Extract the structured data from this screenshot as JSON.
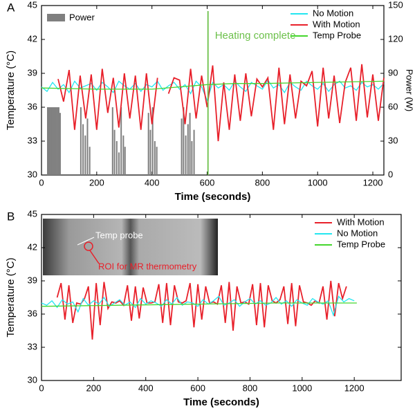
{
  "chart_data": [
    {
      "type": "line",
      "panel_label": "A",
      "xlabel": "Time (seconds)",
      "ylabel": "Temperature (°C)",
      "y2label": "Power (W)",
      "xlim": [
        0,
        1240
      ],
      "xticks": [
        0,
        200,
        400,
        600,
        800,
        1000,
        1200
      ],
      "ylim": [
        30,
        45
      ],
      "yticks": [
        30,
        33,
        36,
        39,
        42,
        45
      ],
      "y2lim": [
        0,
        150
      ],
      "y2ticks": [
        0,
        30,
        60,
        90,
        120,
        150
      ],
      "annotations": [
        {
          "text": "Heating complete",
          "x": 603,
          "color": "#6cc04a"
        }
      ],
      "series": [
        {
          "name": "Power",
          "type": "bar",
          "axis": "y2",
          "color": "#7f7f7f",
          "x": [
            20,
            25,
            30,
            35,
            40,
            45,
            50,
            55,
            60,
            65,
            140,
            148,
            156,
            164,
            172,
            255,
            262,
            270,
            278,
            286,
            294,
            300,
            385,
            392,
            400,
            408,
            415,
            505,
            512,
            520,
            528,
            535,
            542,
            550
          ],
          "values": [
            60,
            60,
            60,
            60,
            60,
            60,
            60,
            60,
            60,
            55,
            60,
            45,
            35,
            50,
            25,
            60,
            40,
            30,
            20,
            60,
            35,
            25,
            55,
            40,
            60,
            30,
            25,
            50,
            60,
            35,
            45,
            55,
            30,
            40
          ]
        },
        {
          "name": "No Motion",
          "color": "#22e6f0",
          "x": [
            0,
            20,
            40,
            60,
            80,
            100,
            120,
            140,
            160,
            180,
            200,
            220,
            240,
            260,
            280,
            300,
            320,
            340,
            360,
            380,
            400,
            420,
            440,
            460,
            480,
            500,
            520,
            540,
            560,
            580,
            600,
            620,
            640,
            660,
            680,
            700,
            720,
            740,
            760,
            780,
            800,
            820,
            840,
            860,
            880,
            900,
            920,
            940,
            960,
            980,
            1000,
            1020,
            1040,
            1060,
            1080,
            1100,
            1120,
            1140,
            1160,
            1180,
            1200,
            1220,
            1240
          ],
          "values": [
            37.8,
            37.4,
            38.2,
            37.6,
            38.0,
            37.3,
            38.3,
            37.7,
            37.9,
            38.1,
            37.5,
            38.2,
            37.8,
            37.3,
            38.3,
            37.9,
            37.6,
            38.1,
            37.4,
            38.0,
            37.8,
            38.3,
            37.5,
            37.9,
            38.2,
            37.6,
            38.0,
            37.2,
            38.3,
            37.8,
            36.6,
            38.2,
            37.7,
            38.0,
            37.5,
            38.3,
            37.8,
            37.4,
            38.2,
            37.9,
            37.6,
            38.4,
            37.7,
            38.0,
            37.3,
            38.2,
            37.8,
            37.5,
            38.3,
            37.9,
            37.6,
            38.1,
            37.4,
            38.0,
            38.3,
            37.7,
            37.9,
            37.5,
            38.2,
            37.8,
            38.0,
            37.6,
            38.1
          ]
        },
        {
          "name": "With Motion",
          "color": "#e8202a",
          "x": [
            60,
            80,
            100,
            120,
            140,
            160,
            180,
            200,
            220,
            240,
            260,
            280,
            300,
            320,
            340,
            360,
            380,
            400,
            420,
            440,
            460,
            480,
            500,
            520,
            540,
            560,
            580,
            600,
            620,
            640,
            660,
            680,
            700,
            720,
            740,
            760,
            780,
            800,
            820,
            840,
            860,
            880,
            900,
            920,
            940,
            960,
            980,
            1000,
            1020,
            1040,
            1060,
            1080,
            1100,
            1120,
            1140,
            1160,
            1180,
            1200,
            1220,
            1240
          ],
          "values": [
            38.5,
            36.5,
            39.3,
            34,
            38.8,
            35,
            38.9,
            34,
            39.4,
            35.5,
            38.6,
            34.2,
            39,
            35,
            38.8,
            34,
            39,
            34.5,
            38.6,
            null,
            37.2,
            38.6,
            38.4,
            34.5,
            39.4,
            35,
            38.8,
            36,
            39.7,
            33,
            38.2,
            34,
            38.9,
            34.8,
            39,
            35.2,
            38.5,
            37.8,
            38.6,
            34,
            39.5,
            34.5,
            38.9,
            35,
            38.3,
            37.9,
            39.2,
            34.3,
            39.5,
            35,
            38.8,
            34.6,
            38.2,
            39.5,
            34.8,
            39.8,
            35.1,
            38.9,
            34.8,
            38.6
          ]
        },
        {
          "name": "Temp Probe",
          "color": "#44d62c",
          "x": [
            0,
            200,
            400,
            500,
            600,
            700,
            800,
            1000,
            1240
          ],
          "values": [
            37.7,
            37.6,
            37.6,
            37.8,
            38.0,
            38.1,
            38.1,
            38.2,
            38.3
          ]
        }
      ]
    },
    {
      "type": "line",
      "panel_label": "B",
      "xlabel": "Time (seconds)",
      "ylabel": "Temperature (°C)",
      "xlim": [
        0,
        1380
      ],
      "xticks": [
        0,
        200,
        400,
        600,
        800,
        1000,
        1200
      ],
      "ylim": [
        30,
        45
      ],
      "yticks": [
        30,
        33,
        36,
        39,
        42,
        45
      ],
      "inset_labels": [
        "Temp probe",
        "ROI for MR thermometry"
      ],
      "series": [
        {
          "name": "With Motion",
          "color": "#e8202a",
          "x": [
            60,
            75,
            90,
            105,
            120,
            135,
            150,
            165,
            180,
            195,
            210,
            225,
            240,
            255,
            270,
            285,
            300,
            315,
            330,
            345,
            360,
            375,
            390,
            405,
            420,
            435,
            450,
            465,
            480,
            495,
            510,
            525,
            540,
            555,
            570,
            585,
            600,
            615,
            630,
            645,
            660,
            675,
            690,
            705,
            720,
            735,
            750,
            765,
            780,
            795,
            810,
            825,
            840,
            855,
            870,
            885,
            900,
            915,
            930,
            945,
            960,
            975,
            990,
            1005,
            1020,
            1035,
            1050,
            1065,
            1080,
            1095,
            1110,
            1125,
            1140,
            1155,
            1170
          ],
          "values": [
            37.5,
            38.8,
            35.5,
            38.6,
            35.2,
            37,
            36.9,
            37.4,
            38.5,
            33.7,
            38.8,
            35,
            38.9,
            36.5,
            37.1,
            37,
            37.2,
            36.8,
            38.6,
            35.4,
            38.5,
            35.6,
            38.4,
            37,
            37,
            37.1,
            38.7,
            35.2,
            38.8,
            35,
            38.6,
            37.1,
            37,
            37.2,
            38.8,
            34.8,
            38.7,
            35.5,
            38.5,
            37,
            37.1,
            36.9,
            38.6,
            35.2,
            38.9,
            34.5,
            38.5,
            37,
            37.1,
            36.9,
            38.7,
            35,
            38.8,
            34.8,
            38.6,
            37.2,
            37,
            37.3,
            38.5,
            35.1,
            38.8,
            34.9,
            38.6,
            37.1,
            37,
            36.8,
            37.2,
            37,
            38.5,
            35.5,
            39,
            35.8,
            38.8,
            37.4,
            38.5
          ]
        },
        {
          "name": "No Motion",
          "color": "#22e6f0",
          "x": [
            0,
            20,
            40,
            60,
            80,
            100,
            120,
            140,
            160,
            180,
            200,
            220,
            240,
            260,
            280,
            300,
            320,
            340,
            360,
            380,
            400,
            420,
            440,
            460,
            480,
            500,
            520,
            540,
            560,
            580,
            600,
            620,
            640,
            660,
            680,
            700,
            720,
            740,
            760,
            780,
            800,
            820,
            840,
            860,
            880,
            900,
            920,
            940,
            960,
            980,
            1000,
            1020,
            1040,
            1060,
            1080,
            1100,
            1120,
            1140,
            1160,
            1180,
            1200
          ],
          "values": [
            37.0,
            36.8,
            37.2,
            36.6,
            37.3,
            36.9,
            37.1,
            36.2,
            37.4,
            36.8,
            37.2,
            36.9,
            37.5,
            36.7,
            37.0,
            37.3,
            36.8,
            37.1,
            36.6,
            37.4,
            36.9,
            37.2,
            37.0,
            36.7,
            37.3,
            36.9,
            37.5,
            36.8,
            37.1,
            37.0,
            36.7,
            37.3,
            36.9,
            37.2,
            37.6,
            36.8,
            37.0,
            37.3,
            36.7,
            37.1,
            37.4,
            36.9,
            37.2,
            36.8,
            37.0,
            37.5,
            36.9,
            37.2,
            36.7,
            37.3,
            37.0,
            36.8,
            37.4,
            37.1,
            36.9,
            37.2,
            35.9,
            37.6,
            37.1,
            37.4,
            37.2
          ]
        },
        {
          "name": "Temp Probe",
          "color": "#44d62c",
          "x": [
            0,
            300,
            600,
            900,
            1210
          ],
          "values": [
            36.7,
            36.8,
            36.9,
            37.0,
            37.0
          ]
        }
      ]
    }
  ]
}
